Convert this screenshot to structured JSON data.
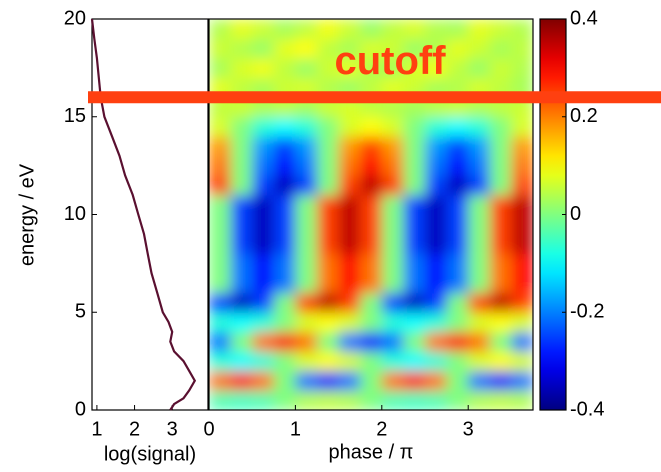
{
  "chart_data": [
    {
      "type": "line",
      "xlabel": "log(signal)",
      "ylabel": "energy / eV",
      "xlim": [
        0.87,
        3.95
      ],
      "xticks": [
        1,
        2,
        3
      ],
      "ylim": [
        0,
        20
      ],
      "yticks": [
        0,
        5,
        10,
        15,
        20
      ],
      "color": "#5a1030",
      "energy": [
        0,
        0.3,
        0.6,
        1,
        1.5,
        2,
        2.5,
        3,
        3.5,
        4,
        4.5,
        5,
        6,
        7,
        8,
        9,
        10,
        11,
        12,
        13,
        14,
        15,
        16,
        17,
        18,
        19,
        20
      ],
      "values": [
        2.95,
        3.05,
        3.3,
        3.45,
        3.6,
        3.45,
        3.3,
        3.05,
        2.95,
        3.0,
        2.9,
        2.75,
        2.6,
        2.45,
        2.35,
        2.25,
        2.1,
        1.95,
        1.75,
        1.6,
        1.4,
        1.2,
        1.1,
        1.05,
        1.0,
        0.93,
        0.87
      ]
    },
    {
      "type": "heatmap",
      "xlabel": "phase / π",
      "xlim": [
        0,
        3.75
      ],
      "xticks": [
        0,
        1,
        2,
        3
      ],
      "ylim": [
        0,
        20
      ],
      "colormap": "jet",
      "clim": [
        -0.4,
        0.4
      ],
      "cticks": [
        0.4,
        0.2,
        0,
        -0.2,
        -0.4
      ],
      "xbins": [
        0,
        0.25,
        0.5,
        0.75,
        1,
        1.25,
        1.5,
        1.75,
        2,
        2.25,
        2.5,
        2.75,
        3,
        3.25,
        3.5,
        3.75
      ],
      "ybins": [
        0,
        1,
        2,
        3,
        4,
        5,
        6,
        7,
        8,
        9,
        10,
        11,
        12,
        13,
        14,
        15,
        16,
        17,
        18,
        19,
        20
      ],
      "values": [
        [
          -0.04,
          -0.05,
          -0.04,
          0,
          0.04,
          0.05,
          0.04,
          0,
          -0.04,
          -0.05,
          -0.04,
          0,
          0.04,
          0.05,
          0.04
        ],
        [
          0.21,
          0.3,
          0.21,
          0,
          -0.21,
          -0.3,
          -0.21,
          0,
          0.21,
          0.3,
          0.21,
          0,
          -0.21,
          -0.3,
          -0.21
        ],
        [
          -0.07,
          -0.1,
          -0.07,
          0,
          0.07,
          0.1,
          0.07,
          0,
          -0.07,
          -0.1,
          -0.07,
          0,
          0.07,
          0.1,
          0.07
        ],
        [
          -0.21,
          0,
          0.21,
          0.3,
          0.21,
          0,
          -0.21,
          -0.3,
          -0.21,
          0,
          0.21,
          0.3,
          0.21,
          0,
          -0.21
        ],
        [
          -0.07,
          -0.1,
          -0.07,
          0,
          0.07,
          0.1,
          0.07,
          0,
          -0.07,
          -0.1,
          -0.07,
          0,
          0.07,
          0.1,
          0.07
        ],
        [
          -0.25,
          -0.35,
          -0.25,
          0,
          0.25,
          0.35,
          0.25,
          0,
          -0.25,
          -0.35,
          -0.25,
          0,
          0.25,
          0.35,
          0.25
        ],
        [
          0,
          -0.21,
          -0.3,
          -0.21,
          0,
          0.21,
          0.3,
          0.21,
          0,
          -0.21,
          -0.3,
          -0.21,
          0,
          0.21,
          0.3
        ],
        [
          0,
          -0.21,
          -0.3,
          -0.21,
          0,
          0.21,
          0.3,
          0.21,
          0,
          -0.21,
          -0.3,
          -0.21,
          0,
          0.21,
          0.3
        ],
        [
          0,
          -0.25,
          -0.35,
          -0.25,
          0,
          0.25,
          0.35,
          0.25,
          0,
          -0.25,
          -0.35,
          -0.25,
          0,
          0.25,
          0.35
        ],
        [
          0,
          -0.25,
          -0.35,
          -0.25,
          0,
          0.25,
          0.35,
          0.25,
          0,
          -0.25,
          -0.35,
          -0.25,
          0,
          0.25,
          0.35
        ],
        [
          0,
          -0.25,
          -0.35,
          -0.25,
          0,
          0.25,
          0.35,
          0.25,
          0,
          -0.25,
          -0.35,
          -0.25,
          0,
          0.25,
          0.35
        ],
        [
          0.25,
          0,
          -0.25,
          -0.35,
          -0.25,
          0,
          0.25,
          0.35,
          0.25,
          0,
          -0.25,
          -0.35,
          -0.25,
          0,
          0.25
        ],
        [
          0.21,
          0,
          -0.21,
          -0.3,
          -0.21,
          0,
          0.21,
          0.3,
          0.21,
          0,
          -0.21,
          -0.3,
          -0.21,
          0,
          0.21
        ],
        [
          0.18,
          0,
          -0.18,
          -0.25,
          -0.18,
          0,
          0.18,
          0.25,
          0.18,
          0,
          -0.18,
          -0.25,
          -0.18,
          0,
          0.18
        ],
        [
          0.07,
          0,
          -0.07,
          -0.1,
          -0.07,
          0,
          0.07,
          0.1,
          0.07,
          0,
          -0.07,
          -0.1,
          -0.07,
          0,
          0.07
        ],
        [
          0.05,
          0.06,
          0.04,
          0.05,
          0.03,
          0.06,
          0.07,
          0.05,
          0.04,
          0.03,
          0.05,
          0.06,
          0.04,
          0.05,
          0.06
        ],
        [
          0.08,
          0.05,
          0.03,
          0.06,
          0.07,
          0.04,
          0.02,
          0.05,
          0.08,
          0.06,
          0.03,
          0.04,
          0.07,
          0.05,
          0.03
        ],
        [
          0.03,
          0.07,
          0.09,
          0.05,
          0.02,
          0.06,
          0.08,
          0.04,
          0.03,
          0.07,
          0.09,
          0.05,
          0.02,
          0.06,
          0.04
        ],
        [
          0.06,
          0.04,
          0.02,
          0.08,
          0.1,
          0.05,
          0.03,
          0.07,
          0.06,
          0.02,
          0.04,
          0.08,
          0.06,
          0.03,
          0.05
        ],
        [
          0.04,
          0.08,
          0.06,
          0.03,
          0.05,
          0.09,
          0.06,
          0.02,
          0.05,
          0.07,
          0.04,
          0.03,
          0.08,
          0.06,
          0.04
        ]
      ],
      "annotation": {
        "text": "cutoff",
        "energy": 16,
        "color": "#ff4010"
      }
    }
  ]
}
